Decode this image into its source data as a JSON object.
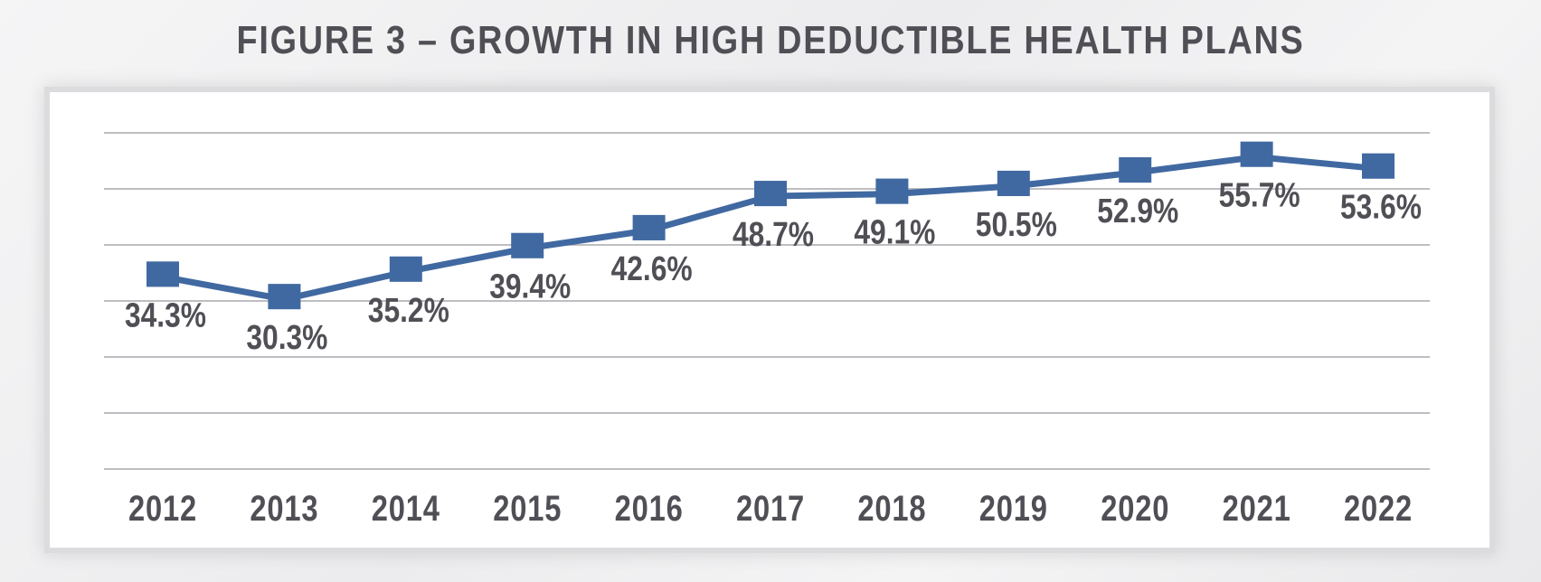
{
  "page": {
    "title": "FIGURE 3 – GROWTH IN HIGH DEDUCTIBLE HEALTH PLANS"
  },
  "colors": {
    "series": "#4169a1",
    "text": "#4f4f55",
    "grid": "#a9a9ad"
  },
  "chart_data": {
    "type": "line",
    "title": "FIGURE 3 – GROWTH IN HIGH DEDUCTIBLE HEALTH PLANS",
    "xlabel": "",
    "ylabel": "",
    "categories": [
      "2012",
      "2013",
      "2014",
      "2015",
      "2016",
      "2017",
      "2018",
      "2019",
      "2020",
      "2021",
      "2022"
    ],
    "series": [
      {
        "name": "High Deductible Health Plans",
        "values": [
          34.3,
          30.3,
          35.2,
          39.4,
          42.6,
          48.7,
          49.1,
          50.5,
          52.9,
          55.7,
          53.6
        ],
        "labels": [
          "34.3%",
          "30.3%",
          "35.2%",
          "39.4%",
          "42.6%",
          "48.7%",
          "49.1%",
          "50.5%",
          "52.9%",
          "55.7%",
          "53.6%"
        ],
        "marker": "square"
      }
    ],
    "ylim": [
      0,
      60
    ],
    "gridlines": 7,
    "legend": "none"
  }
}
